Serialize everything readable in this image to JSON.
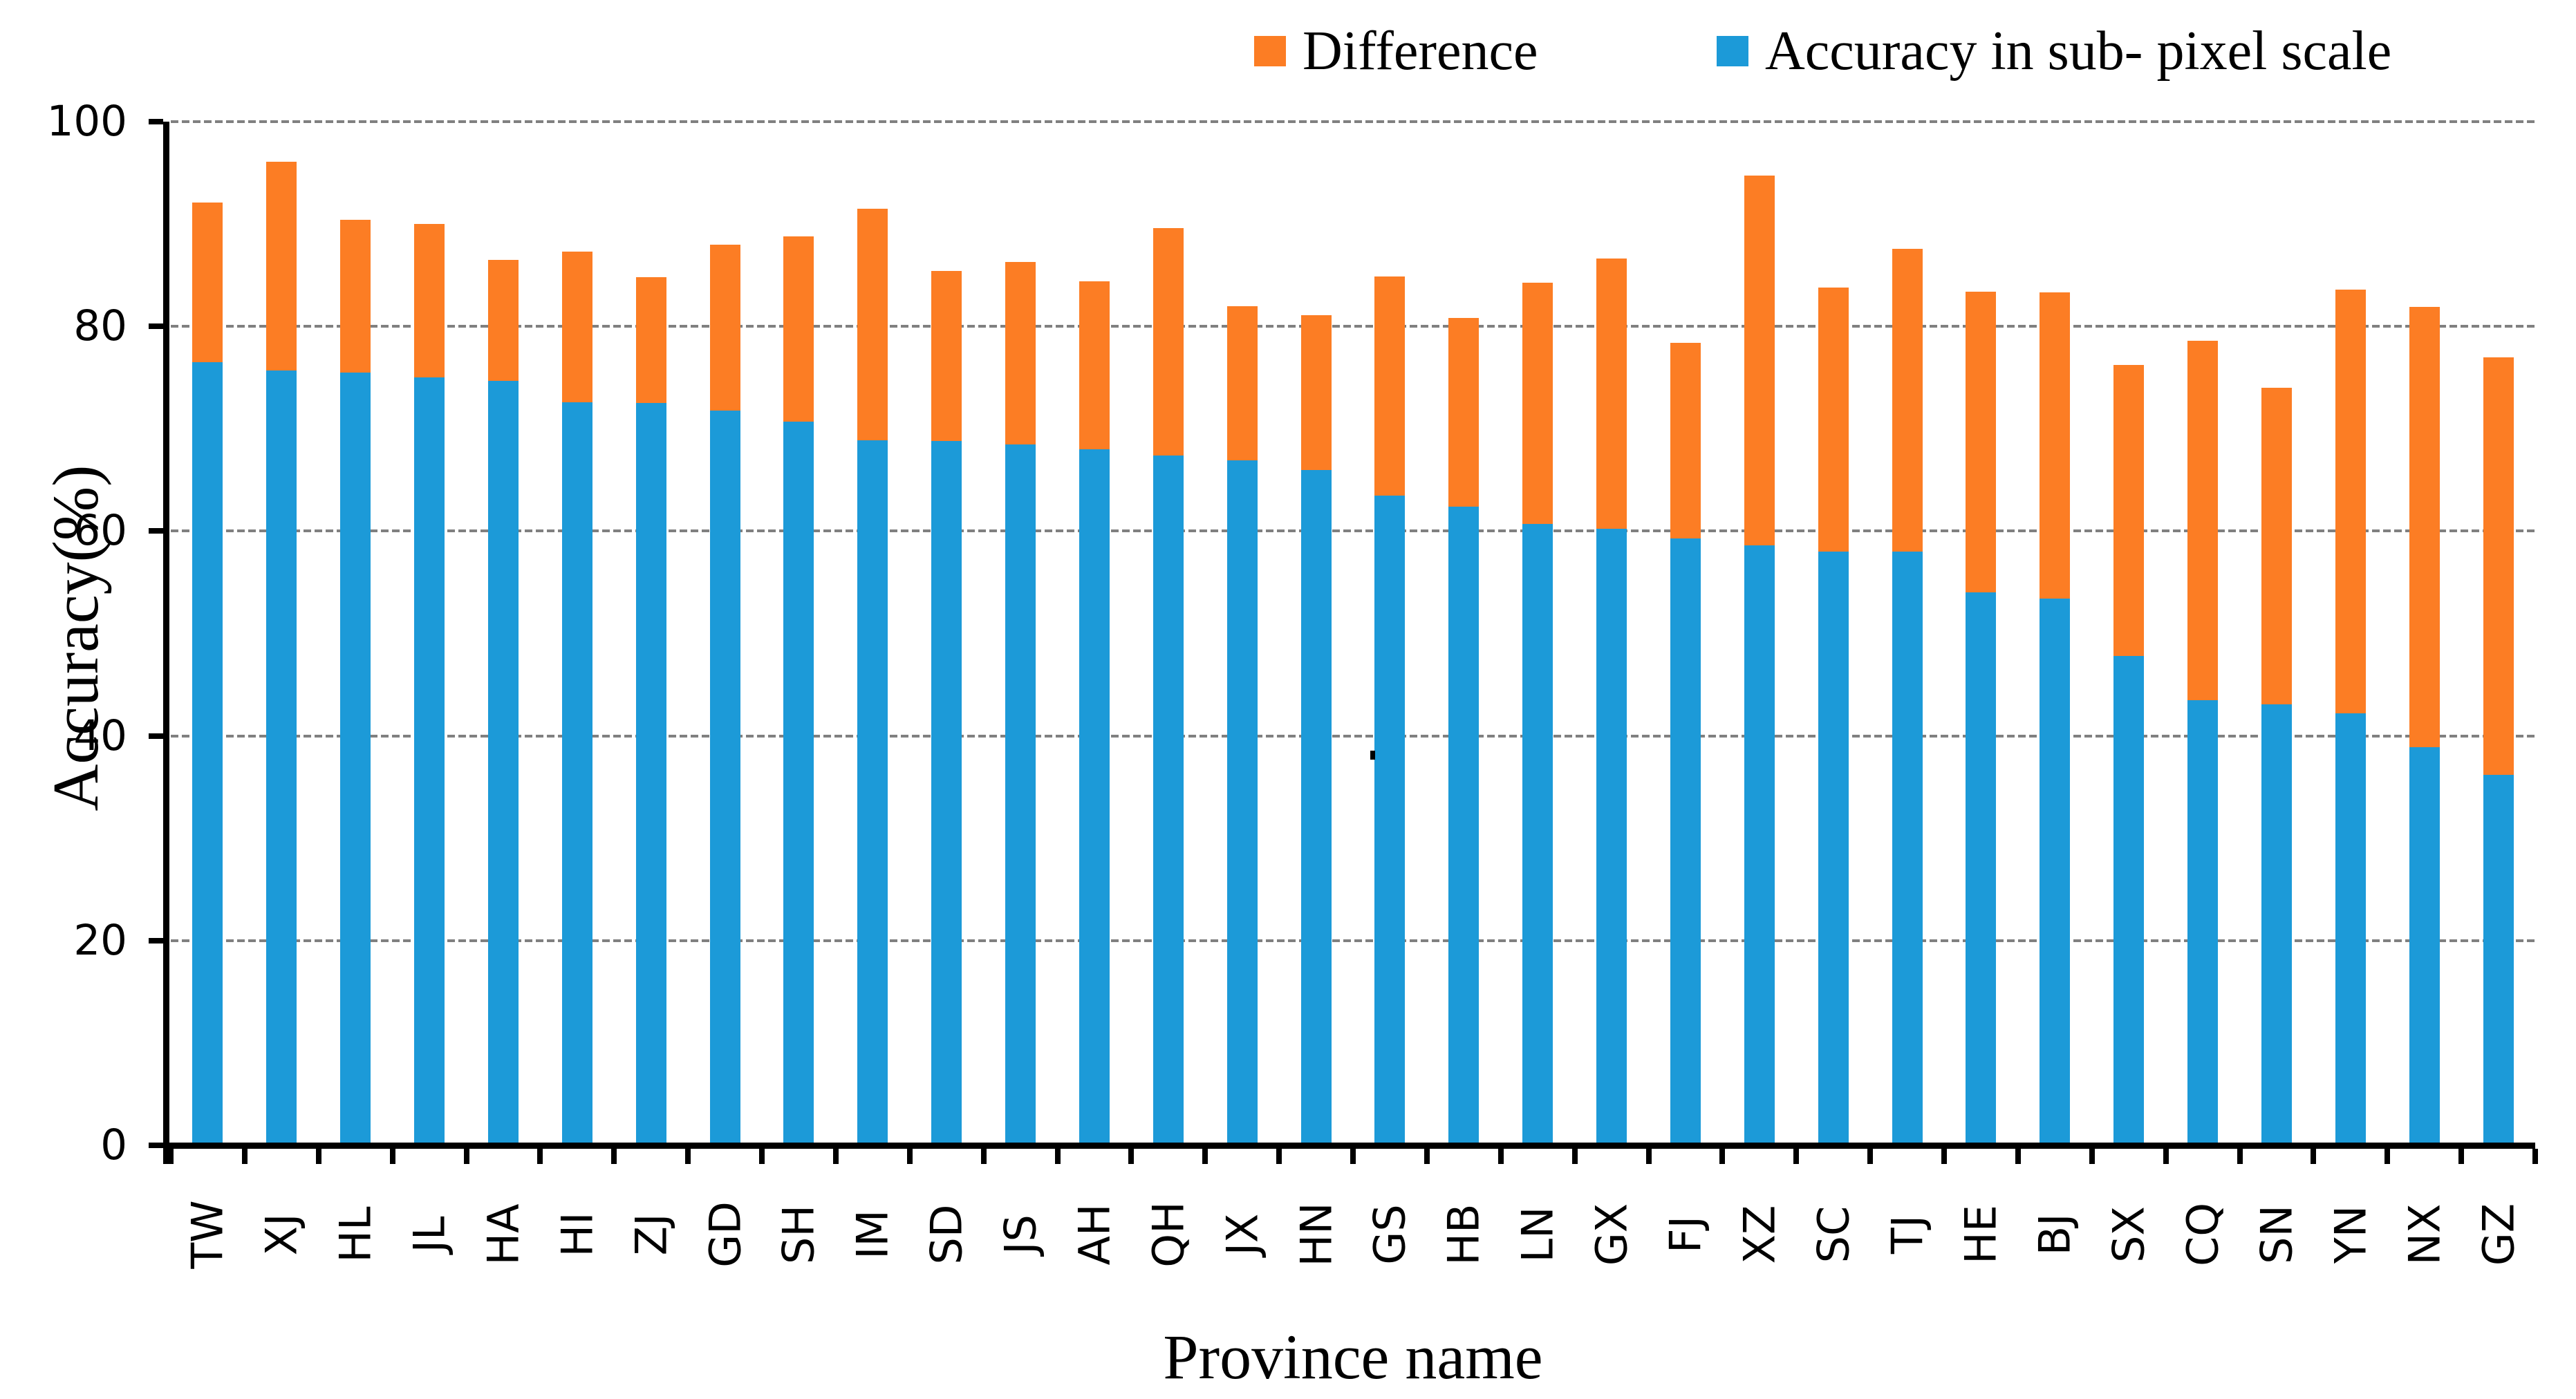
{
  "legend": {
    "items": [
      {
        "label": "Difference",
        "color": "#FC7D24"
      },
      {
        "label": "Accuracy in sub- pixel scale",
        "color": "#1C9AD8"
      }
    ]
  },
  "axes": {
    "y_title": "Accuracy(%)",
    "x_title": "Province name",
    "y_tick_labels": [
      "0",
      "20",
      "40",
      "60",
      "80",
      "100"
    ]
  },
  "chart_data": {
    "type": "bar",
    "stacked": true,
    "title": "",
    "xlabel": "Province name",
    "ylabel": "Accuracy(%)",
    "ylim": [
      0,
      100
    ],
    "yticks": [
      0,
      20,
      40,
      60,
      80,
      100
    ],
    "grid": {
      "horizontal": true,
      "style": "dashed",
      "color": "#808080",
      "levels": [
        20,
        40,
        60,
        80,
        100
      ]
    },
    "legend_position": "top",
    "categories": [
      "TW",
      "XJ",
      "HL",
      "JL",
      "HA",
      "HI",
      "ZJ",
      "GD",
      "SH",
      "IM",
      "SD",
      "JS",
      "AH",
      "QH",
      "JX",
      "HN",
      "GS",
      "HB",
      "LN",
      "GX",
      "FJ",
      "XZ",
      "SC",
      "TJ",
      "HE",
      "BJ",
      "SX",
      "CQ",
      "SN",
      "YN",
      "NX",
      "GZ"
    ],
    "series": [
      {
        "name": "Accuracy in sub- pixel scale",
        "color": "#1C9AD8",
        "values": [
          76.5,
          75.7,
          75.5,
          75.0,
          74.7,
          72.6,
          72.5,
          71.8,
          70.7,
          68.9,
          68.8,
          68.5,
          68.0,
          67.4,
          66.9,
          66.0,
          63.5,
          62.4,
          60.7,
          60.2,
          59.3,
          58.6,
          58.0,
          58.0,
          54.0,
          53.4,
          47.8,
          43.5,
          43.1,
          42.2,
          38.9,
          36.2
        ]
      },
      {
        "name": "Difference",
        "color": "#FC7D24",
        "values": [
          15.6,
          20.4,
          14.9,
          15.0,
          11.8,
          14.7,
          12.3,
          16.2,
          18.1,
          22.6,
          16.6,
          17.8,
          16.4,
          22.2,
          15.1,
          15.1,
          21.4,
          18.4,
          23.6,
          26.4,
          19.1,
          36.1,
          25.8,
          29.6,
          29.4,
          29.9,
          28.4,
          35.1,
          30.9,
          41.4,
          43.0,
          40.8
        ]
      }
    ],
    "stack_totals": [
      92.1,
      96.1,
      90.4,
      90.0,
      86.5,
      87.3,
      84.8,
      88.0,
      88.8,
      91.5,
      85.4,
      86.3,
      84.4,
      89.6,
      82.0,
      81.1,
      84.9,
      80.8,
      84.3,
      86.6,
      78.4,
      94.7,
      83.8,
      87.6,
      83.4,
      83.3,
      76.2,
      78.6,
      74.0,
      83.6,
      81.9,
      77.0
    ]
  },
  "annotations": {
    "stray_mark": {
      "description": "small black mark between GS and its left neighbor",
      "approx_value": 38
    }
  }
}
